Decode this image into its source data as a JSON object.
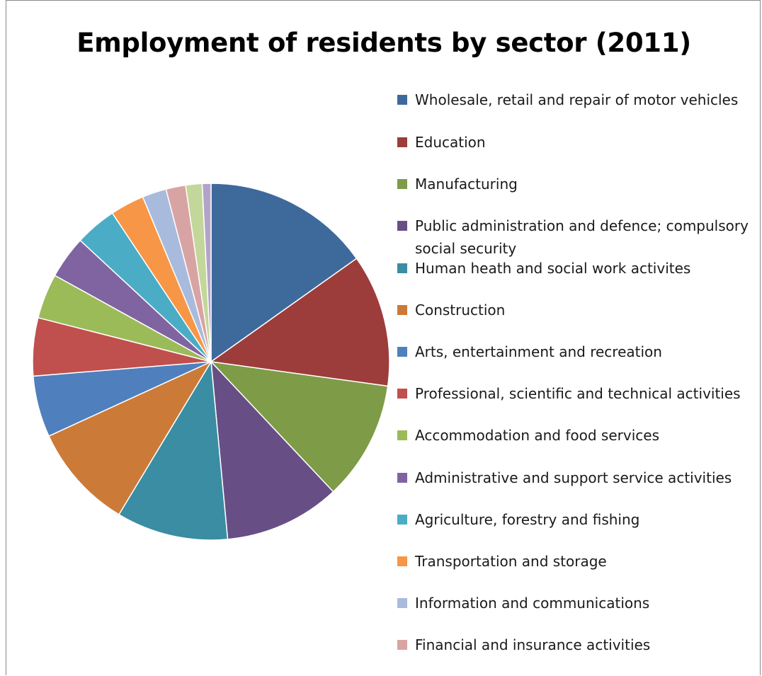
{
  "chart_data": {
    "type": "pie",
    "title": "Employment of residents by sector (2011)",
    "legend_position": "right",
    "slices": [
      {
        "label": "Wholesale, retail and repair of motor vehicles",
        "value": 15.3,
        "color": "#3E6A9B"
      },
      {
        "label": "Education",
        "value": 12.1,
        "color": "#9C3D3B"
      },
      {
        "label": "Manufacturing",
        "value": 10.9,
        "color": "#7E9B47"
      },
      {
        "label": "Public administration and defence; compulsory social security",
        "value": 10.6,
        "color": "#674F86"
      },
      {
        "label": "Human heath and social work activites",
        "value": 10.2,
        "color": "#3A8DA2"
      },
      {
        "label": "Construction",
        "value": 9.6,
        "color": "#CC7A38"
      },
      {
        "label": "Arts, entertainment and recreation",
        "value": 5.6,
        "color": "#4F80BD"
      },
      {
        "label": "Professional, scientific and technical activities",
        "value": 5.3,
        "color": "#C0504D"
      },
      {
        "label": "Accommodation and food services",
        "value": 4.1,
        "color": "#9BBB59"
      },
      {
        "label": "Administrative and support service activities",
        "value": 3.9,
        "color": "#8064A2"
      },
      {
        "label": "Agriculture, forestry and fishing",
        "value": 3.8,
        "color": "#4BACC6"
      },
      {
        "label": "Transportation and storage",
        "value": 3.1,
        "color": "#F79646"
      },
      {
        "label": "Information and communications",
        "value": 2.2,
        "color": "#A9BBDC"
      },
      {
        "label": "Financial and insurance activities",
        "value": 1.8,
        "color": "#D8A4A3"
      },
      {
        "label": "",
        "value": 1.5,
        "color": "#C3D79B"
      },
      {
        "label": "",
        "value": 0.8,
        "color": "#B2A4C9"
      }
    ]
  }
}
